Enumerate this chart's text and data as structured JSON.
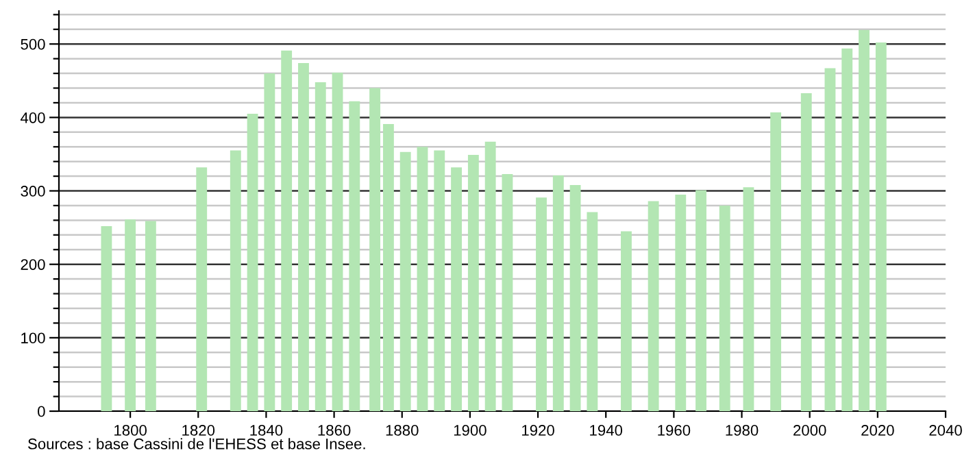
{
  "chart_data": {
    "type": "bar",
    "x": [
      1793,
      1800,
      1806,
      1821,
      1831,
      1836,
      1841,
      1846,
      1851,
      1856,
      1861,
      1866,
      1872,
      1876,
      1881,
      1886,
      1891,
      1896,
      1901,
      1906,
      1911,
      1921,
      1926,
      1931,
      1936,
      1946,
      1954,
      1962,
      1968,
      1975,
      1982,
      1990,
      1999,
      2006,
      2011,
      2016,
      2021
    ],
    "values": [
      252,
      261,
      259,
      332,
      355,
      405,
      460,
      491,
      474,
      448,
      461,
      422,
      440,
      391,
      353,
      360,
      355,
      332,
      349,
      367,
      323,
      291,
      321,
      308,
      271,
      245,
      286,
      295,
      301,
      280,
      305,
      407,
      433,
      467,
      494,
      519,
      502
    ],
    "color": "#b3e6b3",
    "xlim": [
      1779,
      2040
    ],
    "xticks": [
      1800,
      1820,
      1840,
      1860,
      1880,
      1900,
      1920,
      1940,
      1960,
      1980,
      2000,
      2020,
      2040
    ],
    "ylim": [
      0,
      545
    ],
    "yticks": [
      0,
      {
        "value": 20,
        "label": null
      },
      {
        "value": 40,
        "label": null
      },
      {
        "value": 60,
        "label": null
      },
      {
        "value": 80,
        "label": null
      },
      100,
      {
        "value": 120,
        "label": null
      },
      {
        "value": 140,
        "label": null
      },
      {
        "value": 160,
        "label": null
      },
      {
        "value": 180,
        "label": null
      },
      200,
      {
        "value": 220,
        "label": null
      },
      {
        "value": 240,
        "label": null
      },
      {
        "value": 260,
        "label": null
      },
      {
        "value": 280,
        "label": null
      },
      300,
      {
        "value": 320,
        "label": null
      },
      {
        "value": 340,
        "label": null
      },
      {
        "value": 360,
        "label": null
      },
      {
        "value": 380,
        "label": null
      },
      400,
      {
        "value": 420,
        "label": null
      },
      {
        "value": 440,
        "label": null
      },
      {
        "value": 460,
        "label": null
      },
      {
        "value": 480,
        "label": null
      },
      500,
      {
        "value": 520,
        "label": null
      },
      {
        "value": 540,
        "label": null
      }
    ],
    "grid": "y",
    "annotations": [
      "Sources : base Cassini de l'EHESS et base Insee."
    ]
  }
}
